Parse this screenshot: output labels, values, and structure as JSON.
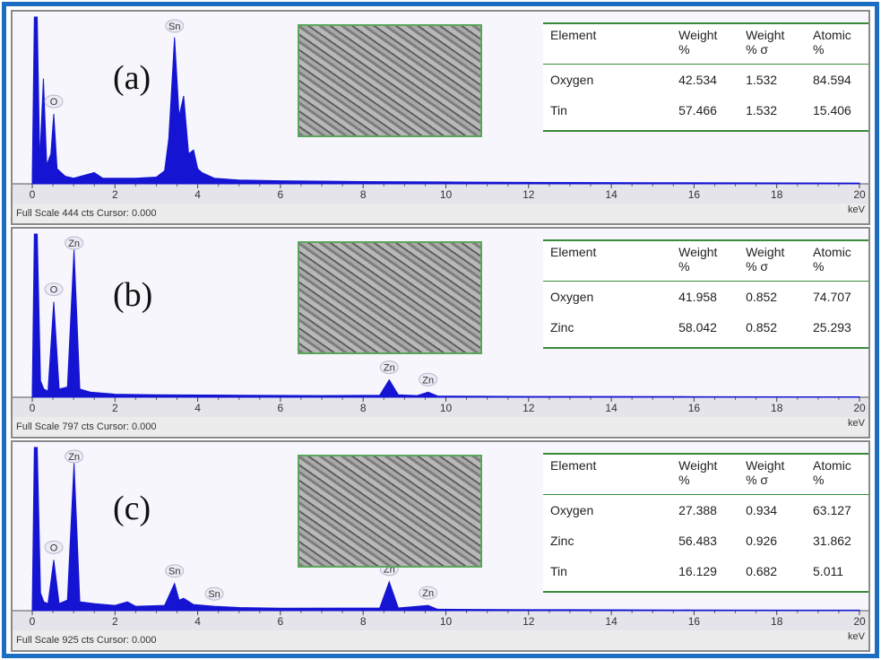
{
  "chart_data": [
    {
      "type": "area",
      "panel_label": "(a)",
      "color": "#1414d2",
      "x": [
        0,
        0.05,
        0.12,
        0.18,
        0.27,
        0.35,
        0.45,
        0.52,
        0.6,
        0.8,
        1.0,
        1.5,
        1.7,
        2.5,
        3.0,
        3.2,
        3.3,
        3.44,
        3.55,
        3.66,
        3.78,
        3.9,
        4.0,
        4.1,
        4.4,
        5,
        6,
        8,
        10,
        12,
        15,
        20
      ],
      "values": [
        20,
        444,
        444,
        60,
        280,
        50,
        80,
        186,
        40,
        20,
        15,
        30,
        15,
        15,
        18,
        35,
        120,
        390,
        180,
        234,
        80,
        90,
        40,
        30,
        15,
        10,
        8,
        6,
        5,
        4,
        3,
        2
      ],
      "xlim": [
        0,
        20
      ],
      "xticks": [
        0,
        2,
        4,
        6,
        8,
        10,
        12,
        14,
        16,
        18,
        20
      ],
      "ylim": [
        0,
        444
      ],
      "xlabel": "keV",
      "footer": "Full Scale 444 cts Cursor: 0.000",
      "annotations": [
        {
          "label": "O",
          "x": 0.52
        },
        {
          "label": "Sn",
          "x": 3.44
        }
      ],
      "table": {
        "columns": [
          "Element",
          "Weight %",
          "Weight % σ",
          "Atomic %"
        ],
        "rows": [
          [
            "Oxygen",
            "42.534",
            "1.532",
            "84.594"
          ],
          [
            "Tin",
            "57.466",
            "1.532",
            "15.406"
          ]
        ]
      }
    },
    {
      "type": "area",
      "panel_label": "(b)",
      "color": "#1414d2",
      "x": [
        0,
        0.05,
        0.12,
        0.2,
        0.28,
        0.38,
        0.52,
        0.65,
        0.85,
        1.01,
        1.15,
        1.4,
        2,
        3,
        5,
        7,
        8.4,
        8.63,
        8.85,
        9.3,
        9.57,
        9.8,
        12,
        16,
        20
      ],
      "values": [
        30,
        797,
        797,
        80,
        40,
        30,
        466,
        40,
        50,
        720,
        40,
        25,
        15,
        12,
        10,
        8,
        10,
        85,
        12,
        8,
        25,
        6,
        4,
        3,
        2
      ],
      "xlim": [
        0,
        20
      ],
      "xticks": [
        0,
        2,
        4,
        6,
        8,
        10,
        12,
        14,
        16,
        18,
        20
      ],
      "ylim": [
        0,
        797
      ],
      "xlabel": "keV",
      "footer": "Full Scale 797 cts Cursor: 0.000",
      "annotations": [
        {
          "label": "O",
          "x": 0.52
        },
        {
          "label": "Zn",
          "x": 1.01
        },
        {
          "label": "Zn",
          "x": 8.63
        },
        {
          "label": "Zn",
          "x": 9.57
        }
      ],
      "table": {
        "columns": [
          "Element",
          "Weight %",
          "Weight % σ",
          "Atomic %"
        ],
        "rows": [
          [
            "Oxygen",
            "41.958",
            "0.852",
            "74.707"
          ],
          [
            "Zinc",
            "58.042",
            "0.852",
            "25.293"
          ]
        ]
      }
    },
    {
      "type": "area",
      "panel_label": "(c)",
      "color": "#1414d2",
      "x": [
        0,
        0.05,
        0.12,
        0.2,
        0.28,
        0.38,
        0.52,
        0.65,
        0.85,
        1.01,
        1.15,
        1.5,
        2.0,
        2.3,
        2.5,
        3.2,
        3.44,
        3.55,
        3.66,
        3.9,
        4.4,
        5,
        6,
        8.4,
        8.63,
        8.85,
        9.57,
        9.8,
        12,
        16,
        20
      ],
      "values": [
        30,
        925,
        925,
        100,
        50,
        40,
        288,
        40,
        60,
        835,
        50,
        40,
        30,
        50,
        25,
        30,
        154,
        60,
        70,
        35,
        25,
        18,
        14,
        15,
        164,
        15,
        30,
        8,
        6,
        4,
        3
      ],
      "xlim": [
        0,
        20
      ],
      "xticks": [
        0,
        2,
        4,
        6,
        8,
        10,
        12,
        14,
        16,
        18,
        20
      ],
      "ylim": [
        0,
        925
      ],
      "xlabel": "keV",
      "footer": "Full Scale 925 cts Cursor: 0.000",
      "annotations": [
        {
          "label": "O",
          "x": 0.52
        },
        {
          "label": "Zn",
          "x": 1.01
        },
        {
          "label": "Sn",
          "x": 3.44
        },
        {
          "label": "Sn",
          "x": 4.4
        },
        {
          "label": "Zn",
          "x": 8.63
        },
        {
          "label": "Zn",
          "x": 9.57
        }
      ],
      "table": {
        "columns": [
          "Element",
          "Weight %",
          "Weight % σ",
          "Atomic %"
        ],
        "rows": [
          [
            "Oxygen",
            "27.388",
            "0.934",
            "63.127"
          ],
          [
            "Zinc",
            "56.483",
            "0.926",
            "31.862"
          ],
          [
            "Tin",
            "16.129",
            "0.682",
            "5.011"
          ]
        ]
      }
    }
  ]
}
